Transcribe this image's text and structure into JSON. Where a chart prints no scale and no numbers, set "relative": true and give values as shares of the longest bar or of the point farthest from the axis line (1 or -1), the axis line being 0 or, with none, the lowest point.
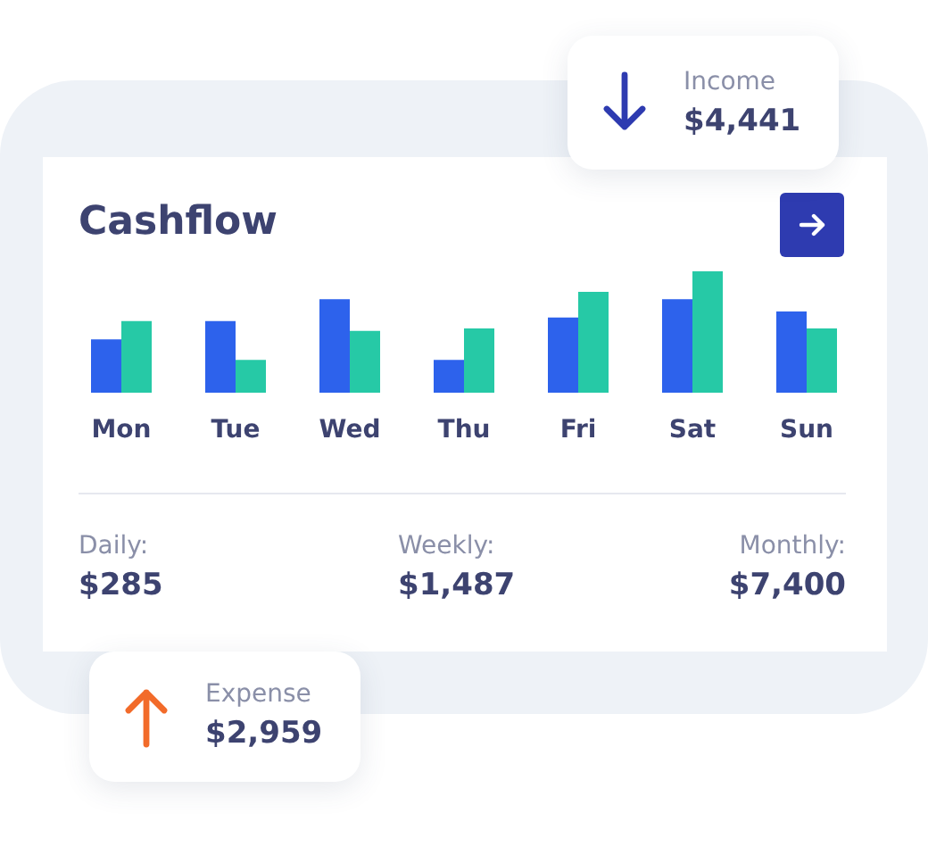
{
  "chart_data": {
    "type": "bar",
    "title": "Cashflow",
    "relative": true,
    "categories": [
      "Mon",
      "Tue",
      "Wed",
      "Thu",
      "Fri",
      "Sat",
      "Sun"
    ],
    "series": [
      {
        "color": "#2d62ec",
        "values": [
          0.44,
          0.59,
          0.77,
          0.27,
          0.62,
          0.77,
          0.67
        ]
      },
      {
        "color": "#26c9a6",
        "values": [
          0.59,
          0.27,
          0.51,
          0.53,
          0.83,
          1,
          0.53
        ]
      }
    ],
    "annotations": [
      "Daily:",
      "$285",
      "Weekly:",
      "$1,487",
      "Monthly:",
      "$7,400",
      "Income",
      "$4,441",
      "Expense",
      "$2,959"
    ]
  }
}
